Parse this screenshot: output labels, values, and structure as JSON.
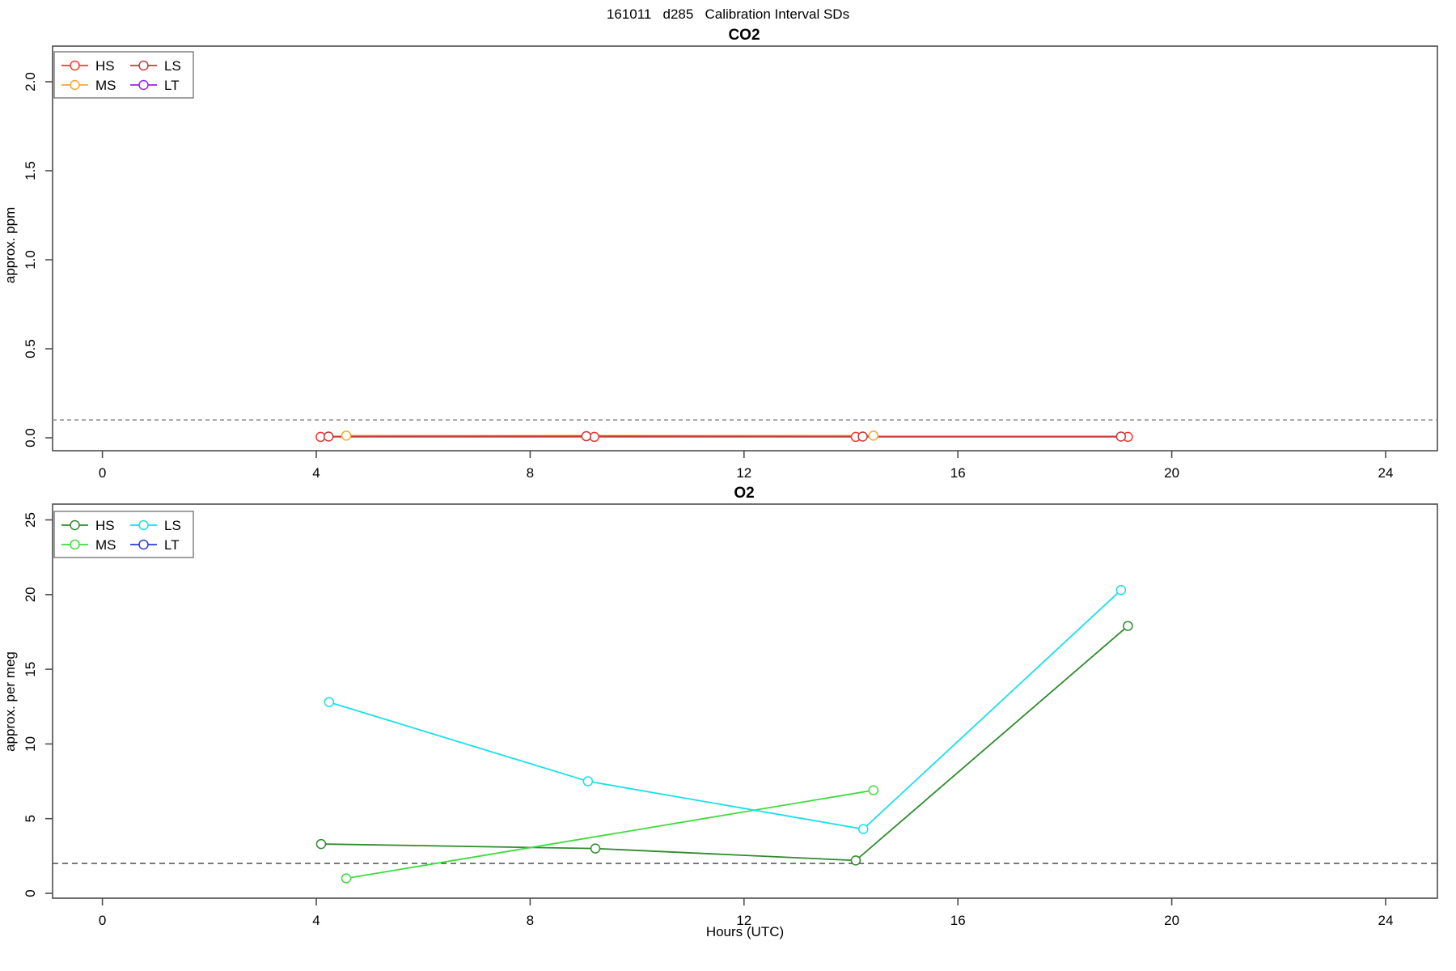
{
  "header": {
    "title": "161011   d285   Calibration Interval SDs"
  },
  "chart_data": [
    {
      "type": "line",
      "title": "CO2",
      "ylabel": "approx. ppm",
      "xlabel": "",
      "x_ticks": [
        0,
        4,
        8,
        12,
        16,
        20,
        24
      ],
      "x_tick_labels": [
        "0",
        "4",
        "8",
        "12",
        "16",
        "20",
        "24"
      ],
      "y_ticks": [
        0.0,
        0.5,
        1.0,
        1.5,
        2.0
      ],
      "y_tick_labels": [
        "0.0",
        "0.5",
        "1.0",
        "1.5",
        "2.0"
      ],
      "xlim": [
        -0.93,
        24.97
      ],
      "ylim": [
        -0.07,
        2.2
      ],
      "grid": false,
      "legend_position": "top-left",
      "reference_line": {
        "value": 0.1,
        "color": "#8f8f8f",
        "dash": "5,4"
      },
      "series": [
        {
          "name": "HS",
          "color": "#ff3232",
          "points": [
            [
              4.08,
              0.005
            ],
            [
              9.2,
              0.005
            ],
            [
              14.09,
              0.005
            ],
            [
              19.18,
              0.005
            ]
          ]
        },
        {
          "name": "MS",
          "color": "#ffa52c",
          "points": [
            [
              4.56,
              0.012
            ],
            [
              14.42,
              0.012
            ]
          ]
        },
        {
          "name": "LS",
          "color": "#c63b3b",
          "points": [
            [
              4.23,
              0.007
            ],
            [
              9.05,
              0.009
            ],
            [
              14.22,
              0.007
            ],
            [
              19.05,
              0.007
            ]
          ]
        },
        {
          "name": "LT",
          "color": "#a020f0",
          "points": []
        }
      ]
    },
    {
      "type": "line",
      "title": "O2",
      "ylabel": "approx. per meg",
      "xlabel": "Hours (UTC)",
      "x_ticks": [
        0,
        4,
        8,
        12,
        16,
        20,
        24
      ],
      "x_tick_labels": [
        "0",
        "4",
        "8",
        "12",
        "16",
        "20",
        "24"
      ],
      "y_ticks": [
        0,
        5,
        10,
        15,
        20,
        25
      ],
      "y_tick_labels": [
        "0",
        "5",
        "10",
        "15",
        "20",
        "25"
      ],
      "xlim": [
        -0.93,
        24.97
      ],
      "ylim": [
        -0.35,
        26.0
      ],
      "grid": false,
      "legend_position": "top-left",
      "reference_line": {
        "value": 2,
        "color": "#404040",
        "dash": "7,5"
      },
      "series": [
        {
          "name": "HS",
          "color": "#2e8b2e",
          "points": [
            [
              4.09,
              3.3
            ],
            [
              9.22,
              3.0
            ],
            [
              14.09,
              2.2
            ],
            [
              19.18,
              17.9
            ]
          ]
        },
        {
          "name": "MS",
          "color": "#3cdc3c",
          "points": [
            [
              4.56,
              1.0
            ],
            [
              14.42,
              6.9
            ]
          ]
        },
        {
          "name": "LS",
          "color": "#18dfea",
          "points": [
            [
              4.24,
              12.8
            ],
            [
              9.08,
              7.5
            ],
            [
              14.23,
              4.3
            ],
            [
              19.05,
              20.3
            ]
          ]
        },
        {
          "name": "LT",
          "color": "#2a3be0",
          "points": []
        }
      ]
    }
  ]
}
